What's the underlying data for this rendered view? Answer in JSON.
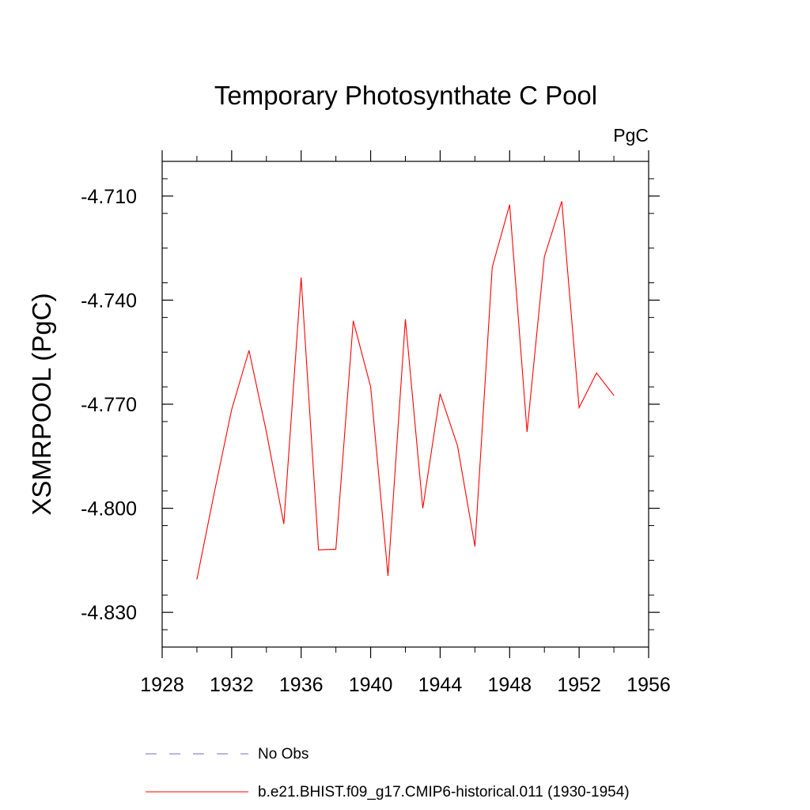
{
  "chart_data": {
    "type": "line",
    "title": "Temporary Photosynthate C Pool",
    "unit": "PgC",
    "ylabel": "XSMRPOOL  (PgC)",
    "xlabel": "",
    "xlim": [
      1928,
      1956
    ],
    "ylim": [
      -4.84,
      -4.7
    ],
    "x_ticks": [
      1928,
      1932,
      1936,
      1940,
      1944,
      1948,
      1952,
      1956
    ],
    "x_tick_labels": [
      "1928",
      "1932",
      "1936",
      "1940",
      "1944",
      "1948",
      "1952",
      "1956"
    ],
    "y_ticks": [
      -4.71,
      -4.74,
      -4.77,
      -4.8,
      -4.83
    ],
    "y_tick_labels": [
      "-4.710",
      "-4.740",
      "-4.770",
      "-4.800",
      "-4.830"
    ],
    "grid": false,
    "legend_position": "bottom",
    "series": [
      {
        "name": "b.e21.BHIST.f09_g17.CMIP6-historical.011 (1930-1954)",
        "color": "#ff0000",
        "style": "solid",
        "x": [
          1930,
          1931,
          1932,
          1933,
          1934,
          1935,
          1936,
          1937,
          1938,
          1939,
          1940,
          1941,
          1942,
          1943,
          1944,
          1945,
          1946,
          1947,
          1948,
          1949,
          1950,
          1951,
          1952,
          1953,
          1954
        ],
        "y": [
          -4.8205,
          -4.7955,
          -4.7715,
          -4.7545,
          -4.778,
          -4.8045,
          -4.7335,
          -4.812,
          -4.8118,
          -4.746,
          -4.765,
          -4.8195,
          -4.7455,
          -4.8,
          -4.767,
          -4.782,
          -4.811,
          -4.7305,
          -4.7125,
          -4.778,
          -4.7275,
          -4.7115,
          -4.771,
          -4.761,
          -4.7675
        ]
      }
    ],
    "legend": [
      {
        "label": "No Obs",
        "color": "#7070c0",
        "style": "dashed"
      },
      {
        "label": "b.e21.BHIST.f09_g17.CMIP6-historical.011 (1930-1954)",
        "color": "#ff0000",
        "style": "solid"
      }
    ]
  }
}
